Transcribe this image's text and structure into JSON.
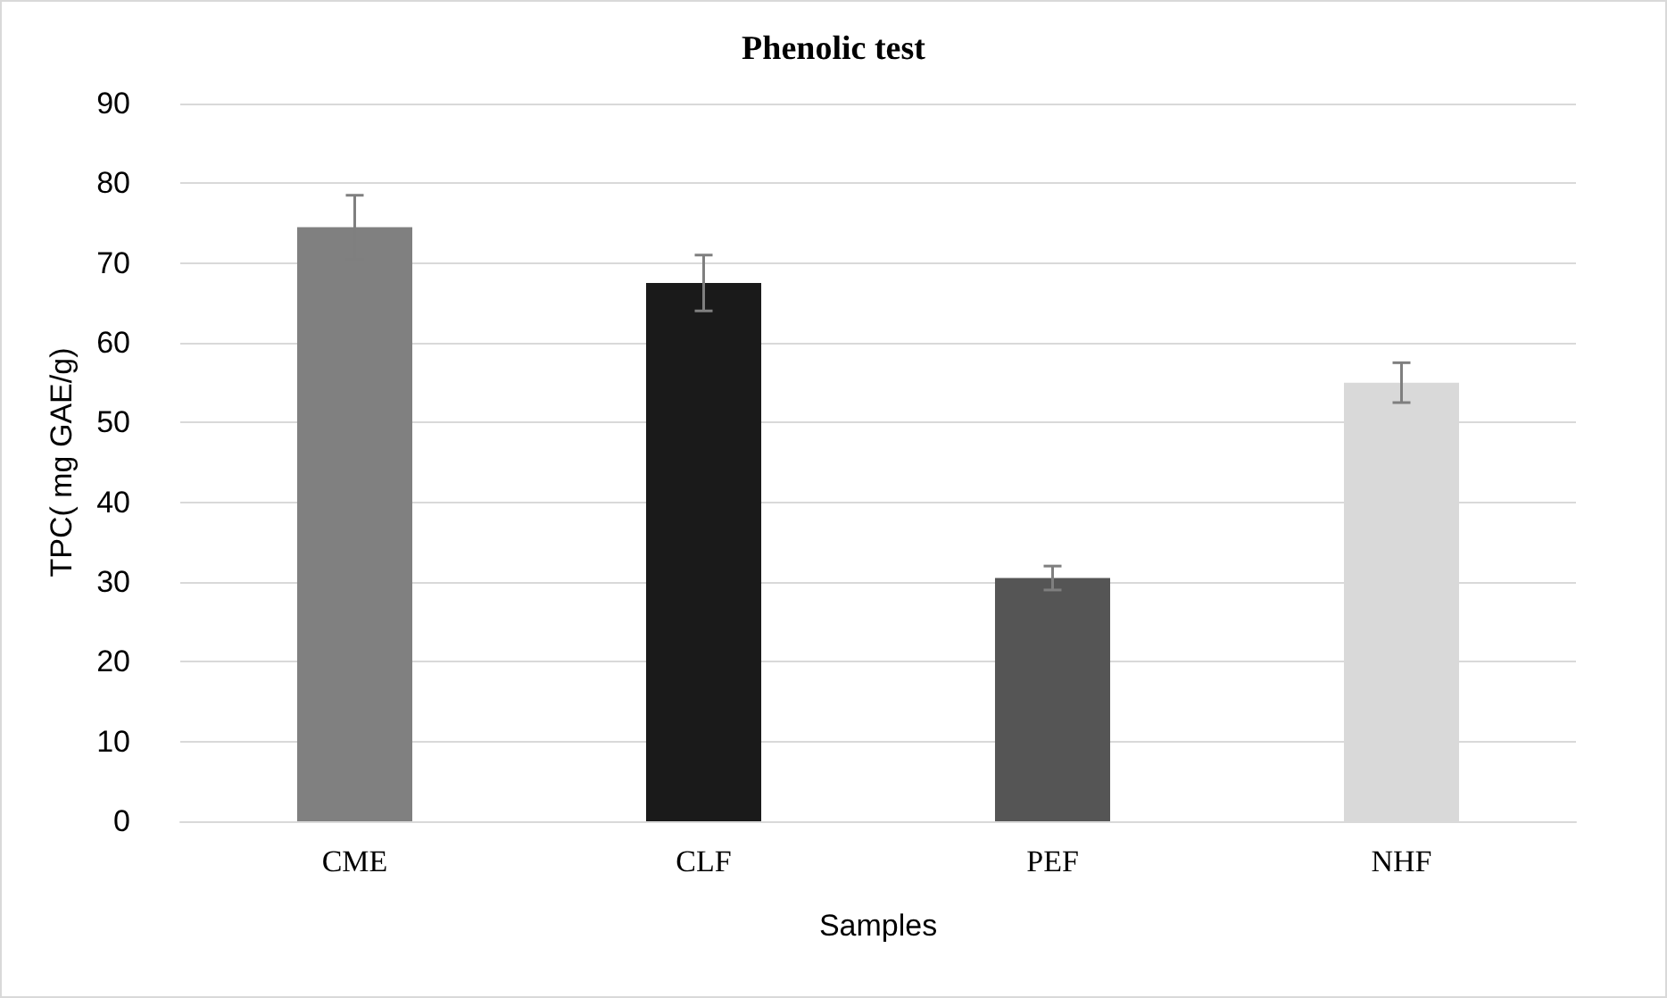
{
  "chart_data": {
    "type": "bar",
    "title": "Phenolic test",
    "xlabel": "Samples",
    "ylabel": "TPC( mg GAE/g)",
    "categories": [
      "CME",
      "CLF",
      "PEF",
      "NHF"
    ],
    "values": [
      74.5,
      67.5,
      30.5,
      55
    ],
    "errors": [
      4,
      3.5,
      1.5,
      2.5
    ],
    "colors": [
      "#808080",
      "#1a1a1a",
      "#555555",
      "#d9d9d9"
    ],
    "ylim": [
      0,
      90
    ],
    "yticks": [
      0,
      10,
      20,
      30,
      40,
      50,
      60,
      70,
      80,
      90
    ],
    "grid": "y"
  }
}
